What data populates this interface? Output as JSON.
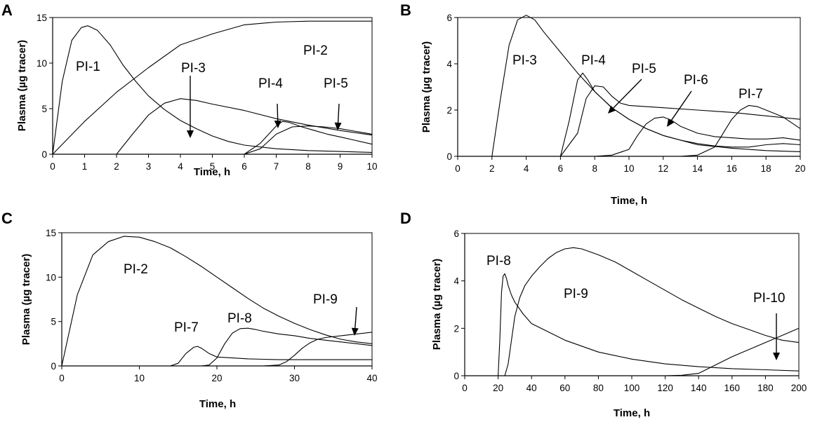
{
  "chart_data": [
    {
      "panel": "A",
      "type": "line",
      "xlabel": "Time, h",
      "ylabel": "Plasma (µg tracer)",
      "xlim": [
        0,
        10
      ],
      "ylim": [
        0,
        15
      ],
      "xticks": [
        0,
        1,
        2,
        3,
        4,
        5,
        6,
        7,
        8,
        9,
        10
      ],
      "yticks": [
        0,
        5,
        10,
        15
      ],
      "series": [
        {
          "name": "PI-1",
          "x": [
            0,
            0.3,
            0.6,
            0.9,
            1.1,
            1.4,
            1.8,
            2.2,
            2.6,
            3.0,
            3.5,
            4.0,
            4.5,
            5.0,
            5.5,
            6.0,
            7.0,
            8.0,
            9.0,
            10.0
          ],
          "y": [
            0,
            8,
            12.5,
            13.9,
            14.1,
            13.6,
            12.0,
            9.8,
            8.0,
            6.4,
            4.9,
            3.7,
            2.8,
            2.0,
            1.4,
            1.0,
            0.6,
            0.4,
            0.3,
            0.2
          ]
        },
        {
          "name": "PI-2",
          "x": [
            0,
            1,
            2,
            3,
            4,
            5,
            6,
            7,
            8,
            9,
            10
          ],
          "y": [
            0,
            3.6,
            6.8,
            9.5,
            12.0,
            13.2,
            14.2,
            14.5,
            14.6,
            14.6,
            14.6
          ]
        },
        {
          "name": "PI-3",
          "x": [
            0,
            2,
            2.5,
            3,
            3.5,
            4,
            4.5,
            5,
            6,
            7,
            8,
            9,
            10
          ],
          "y": [
            0,
            0,
            2.2,
            4.3,
            5.6,
            6.1,
            5.9,
            5.5,
            4.8,
            3.9,
            3.2,
            2.6,
            2.1
          ]
        },
        {
          "name": "PI-4",
          "x": [
            6,
            6.5,
            7.0,
            7.2,
            7.4,
            7.8,
            8.2,
            8.6,
            9.0,
            9.5,
            10.0
          ],
          "y": [
            0,
            1.2,
            3.1,
            3.6,
            3.5,
            3.0,
            2.6,
            2.2,
            1.9,
            1.5,
            1.1
          ]
        },
        {
          "name": "PI-5",
          "x": [
            6,
            6.5,
            7.0,
            7.5,
            8.0,
            8.5,
            9.0,
            9.5,
            10.0
          ],
          "y": [
            0,
            0.6,
            2.2,
            3.0,
            3.1,
            3.0,
            2.8,
            2.5,
            2.2
          ]
        }
      ],
      "curve_labels": [
        "PI-1",
        "PI-2",
        "PI-3",
        "PI-4",
        "PI-5"
      ]
    },
    {
      "panel": "B",
      "type": "line",
      "xlabel": "Time, h",
      "ylabel": "Plasma (µg tracer)",
      "xlim": [
        0,
        20
      ],
      "ylim": [
        0,
        6
      ],
      "xticks": [
        0,
        2,
        4,
        6,
        8,
        10,
        12,
        14,
        16,
        18,
        20
      ],
      "yticks": [
        0,
        2,
        4,
        6
      ],
      "series": [
        {
          "name": "PI-3",
          "x": [
            0,
            2,
            2.5,
            3,
            3.5,
            4,
            4.5,
            5,
            6,
            7,
            8,
            9,
            10,
            11,
            12,
            13,
            14,
            16,
            18,
            20
          ],
          "y": [
            0,
            0,
            2.5,
            4.8,
            5.9,
            6.1,
            5.9,
            5.4,
            4.5,
            3.6,
            2.8,
            2.1,
            1.6,
            1.2,
            0.9,
            0.7,
            0.5,
            0.35,
            0.25,
            0.2
          ]
        },
        {
          "name": "PI-4",
          "x": [
            6,
            6.5,
            7,
            7.3,
            7.6,
            8,
            9,
            10,
            11,
            12,
            13,
            14,
            15,
            16,
            17,
            18,
            19,
            20
          ],
          "y": [
            0,
            1.5,
            3.3,
            3.6,
            3.3,
            2.8,
            2.1,
            1.6,
            1.2,
            0.9,
            0.7,
            0.55,
            0.45,
            0.4,
            0.4,
            0.5,
            0.55,
            0.5
          ]
        },
        {
          "name": "PI-5",
          "x": [
            6,
            7,
            7.5,
            8,
            8.5,
            9,
            9.5,
            10,
            12,
            14,
            16,
            18,
            20
          ],
          "y": [
            0,
            1.0,
            2.5,
            3.05,
            3.0,
            2.6,
            2.3,
            2.2,
            2.1,
            2.0,
            1.9,
            1.75,
            1.6
          ]
        },
        {
          "name": "PI-6",
          "x": [
            8,
            9,
            10,
            10.5,
            11,
            11.5,
            12,
            12.5,
            13,
            14,
            15,
            16,
            17,
            18,
            19,
            20
          ],
          "y": [
            0,
            0.05,
            0.3,
            0.9,
            1.4,
            1.65,
            1.7,
            1.55,
            1.3,
            1.0,
            0.85,
            0.8,
            0.75,
            0.75,
            0.8,
            0.7
          ]
        },
        {
          "name": "PI-7",
          "x": [
            13,
            14,
            15,
            16,
            16.5,
            17,
            17.5,
            18,
            19,
            20
          ],
          "y": [
            0,
            0.05,
            0.4,
            1.6,
            2.0,
            2.2,
            2.15,
            2.0,
            1.7,
            1.2
          ]
        }
      ],
      "curve_labels": [
        "PI-3",
        "PI-4",
        "PI-5",
        "PI-6",
        "PI-7"
      ]
    },
    {
      "panel": "C",
      "type": "line",
      "xlabel": "Time, h",
      "ylabel": "Plasma (µg tracer)",
      "xlim": [
        0,
        40
      ],
      "ylim": [
        0,
        15
      ],
      "xticks": [
        0,
        10,
        20,
        30,
        40
      ],
      "yticks": [
        0,
        5,
        10,
        15
      ],
      "series": [
        {
          "name": "PI-2",
          "x": [
            0,
            2,
            4,
            6,
            8,
            10,
            12,
            14,
            16,
            18,
            20,
            22,
            24,
            26,
            28,
            30,
            32,
            34,
            36,
            38,
            40
          ],
          "y": [
            0,
            8,
            12.5,
            14.0,
            14.6,
            14.5,
            14.0,
            13.3,
            12.3,
            11.2,
            10.0,
            8.8,
            7.6,
            6.5,
            5.6,
            4.8,
            4.1,
            3.5,
            3.0,
            2.7,
            2.5
          ]
        },
        {
          "name": "PI-7",
          "x": [
            0,
            14,
            15,
            16,
            17,
            17.5,
            18,
            19,
            20,
            22,
            24,
            26,
            28,
            30,
            32,
            34,
            36,
            38,
            40
          ],
          "y": [
            0,
            0,
            0.3,
            1.4,
            2.1,
            2.2,
            2.0,
            1.4,
            1.0,
            0.9,
            0.8,
            0.75,
            0.7,
            0.7,
            0.7,
            0.7,
            0.7,
            0.7,
            0.7
          ]
        },
        {
          "name": "PI-8",
          "x": [
            18,
            19,
            20,
            21,
            22,
            23,
            24,
            25,
            26,
            28,
            30,
            32,
            34,
            36,
            38,
            40
          ],
          "y": [
            0,
            0.1,
            0.9,
            2.5,
            3.7,
            4.2,
            4.25,
            4.1,
            3.9,
            3.6,
            3.4,
            3.1,
            2.9,
            2.7,
            2.5,
            2.3
          ]
        },
        {
          "name": "PI-9",
          "x": [
            24,
            26,
            28,
            29,
            30,
            31,
            32,
            33,
            34,
            36,
            38,
            40
          ],
          "y": [
            0,
            0,
            0.1,
            0.5,
            1.2,
            2.0,
            2.6,
            3.0,
            3.2,
            3.4,
            3.6,
            3.8
          ]
        }
      ],
      "curve_labels": [
        "PI-2",
        "PI-7",
        "PI-8",
        "PI-9"
      ]
    },
    {
      "panel": "D",
      "type": "line",
      "xlabel": "Time, h",
      "ylabel": "Plasma (µg tracer)",
      "xlim": [
        0,
        200
      ],
      "ylim": [
        0,
        6
      ],
      "xticks": [
        0,
        20,
        40,
        60,
        80,
        100,
        120,
        140,
        160,
        180,
        200
      ],
      "yticks": [
        0,
        2,
        4,
        6
      ],
      "series": [
        {
          "name": "PI-8",
          "x": [
            20,
            21,
            22,
            23,
            24,
            25,
            26,
            28,
            30,
            35,
            40,
            50,
            60,
            80,
            100,
            120,
            140,
            160,
            180,
            200
          ],
          "y": [
            0,
            1.5,
            3.5,
            4.2,
            4.3,
            4.1,
            3.8,
            3.4,
            3.1,
            2.6,
            2.2,
            1.85,
            1.5,
            1.0,
            0.7,
            0.5,
            0.38,
            0.3,
            0.25,
            0.2
          ]
        },
        {
          "name": "PI-9",
          "x": [
            24,
            26,
            28,
            30,
            33,
            36,
            40,
            45,
            50,
            55,
            60,
            65,
            70,
            80,
            90,
            100,
            110,
            120,
            130,
            140,
            150,
            160,
            170,
            180,
            190,
            200
          ],
          "y": [
            0,
            0.5,
            1.5,
            2.5,
            3.3,
            3.8,
            4.2,
            4.6,
            4.95,
            5.2,
            5.35,
            5.4,
            5.35,
            5.1,
            4.8,
            4.4,
            4.0,
            3.6,
            3.2,
            2.85,
            2.5,
            2.2,
            1.95,
            1.7,
            1.5,
            1.4
          ]
        },
        {
          "name": "PI-10",
          "x": [
            120,
            130,
            140,
            150,
            160,
            170,
            180,
            190,
            200
          ],
          "y": [
            0,
            0.02,
            0.1,
            0.45,
            0.8,
            1.1,
            1.4,
            1.7,
            2.0
          ]
        }
      ],
      "curve_labels": [
        "PI-8",
        "PI-9",
        "PI-10"
      ]
    }
  ]
}
